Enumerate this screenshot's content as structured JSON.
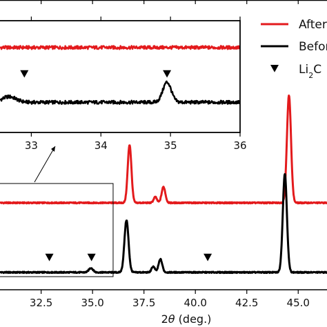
{
  "chart_data": [
    {
      "type": "line",
      "panel": "main",
      "xlabel": "2θ (deg.)",
      "xlabel_parts": {
        "prefix": "2",
        "theta": "θ",
        "suffix": " (deg.)"
      },
      "xlim": [
        30.5,
        46.4
      ],
      "ylim": [
        0,
        1.0
      ],
      "x_ticks": [
        32.5,
        35.0,
        37.5,
        40.0,
        42.5,
        45.0
      ],
      "x_tick_labels": [
        "32.5",
        "35.0",
        "37.5",
        "40.0",
        "42.5",
        "45.0"
      ],
      "grid": false,
      "legend_position": "top-right",
      "series": [
        {
          "name": "After",
          "color": "#e31a1c",
          "baseline": 0.3,
          "peaks": [
            {
              "x": 36.8,
              "height": 0.2,
              "width": 0.09
            },
            {
              "x": 38.05,
              "height": 0.02,
              "width": 0.08
            },
            {
              "x": 38.45,
              "height": 0.055,
              "width": 0.09
            },
            {
              "x": 44.55,
              "height": 0.37,
              "width": 0.1
            }
          ]
        },
        {
          "name": "Before",
          "color": "#000000",
          "baseline": 0.06,
          "peaks": [
            {
              "x": 34.92,
              "height": 0.015,
              "width": 0.1
            },
            {
              "x": 36.65,
              "height": 0.18,
              "width": 0.1
            },
            {
              "x": 37.95,
              "height": 0.02,
              "width": 0.08
            },
            {
              "x": 38.3,
              "height": 0.045,
              "width": 0.09
            },
            {
              "x": 44.35,
              "height": 0.34,
              "width": 0.1
            }
          ]
        },
        {
          "name": "Li2C",
          "name_parts": {
            "base": "Li",
            "sub": "2",
            "tail": "C"
          },
          "marker": "triangle-down",
          "color": "#000000",
          "x": [
            32.9,
            34.95,
            40.6
          ],
          "y": [
            0.11,
            0.11,
            0.11
          ]
        }
      ],
      "zoom_box": {
        "xlim": [
          30.5,
          36.0
        ]
      }
    },
    {
      "type": "line",
      "panel": "inset",
      "xlim": [
        32.55,
        36.0
      ],
      "ylim": [
        0,
        1.0
      ],
      "x_ticks": [
        33,
        34,
        35,
        36
      ],
      "x_tick_labels": [
        "33",
        "34",
        "35",
        "36"
      ],
      "series": [
        {
          "name": "After",
          "color": "#e31a1c",
          "baseline": 0.76,
          "noise": 0.015,
          "peaks": []
        },
        {
          "name": "Before",
          "color": "#000000",
          "baseline": 0.27,
          "noise": 0.015,
          "peaks": [
            {
              "x": 32.68,
              "height": 0.05,
              "width": 0.1
            },
            {
              "x": 34.95,
              "height": 0.18,
              "width": 0.06
            }
          ]
        },
        {
          "name": "Li2C",
          "marker": "triangle-down",
          "color": "#000000",
          "x": [
            32.9,
            34.95
          ],
          "y": [
            0.52,
            0.52
          ]
        }
      ]
    }
  ]
}
